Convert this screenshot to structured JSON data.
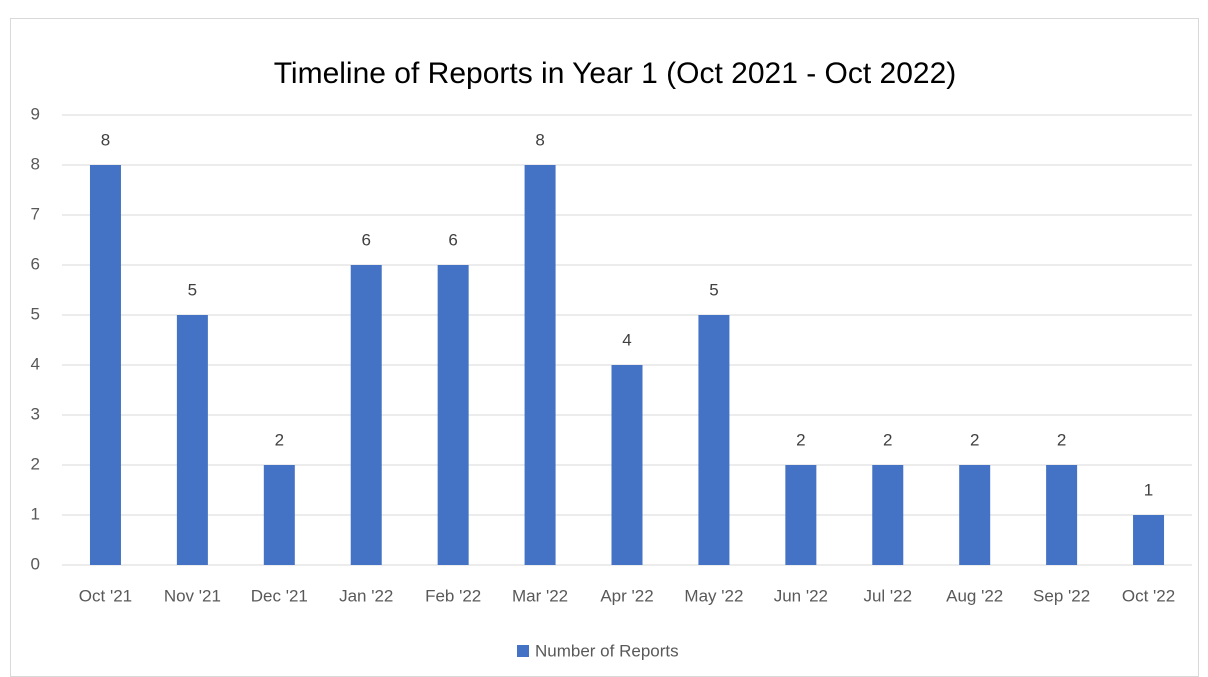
{
  "chart_data": {
    "type": "bar",
    "title": "Timeline of Reports in Year 1 (Oct 2021 - Oct 2022)",
    "categories": [
      "Oct '21",
      "Nov '21",
      "Dec '21",
      "Jan '22",
      "Feb '22",
      "Mar '22",
      "Apr '22",
      "May '22",
      "Jun '22",
      "Jul '22",
      "Aug '22",
      "Sep '22",
      "Oct '22"
    ],
    "series": [
      {
        "name": "Number of Reports",
        "color": "#4472c4",
        "values": [
          8,
          5,
          2,
          6,
          6,
          8,
          4,
          5,
          2,
          2,
          2,
          2,
          1
        ]
      }
    ],
    "ylim": [
      0,
      9
    ],
    "yticks": [
      0,
      1,
      2,
      3,
      4,
      5,
      6,
      7,
      8,
      9
    ],
    "grid": true,
    "legend": "bottom"
  }
}
